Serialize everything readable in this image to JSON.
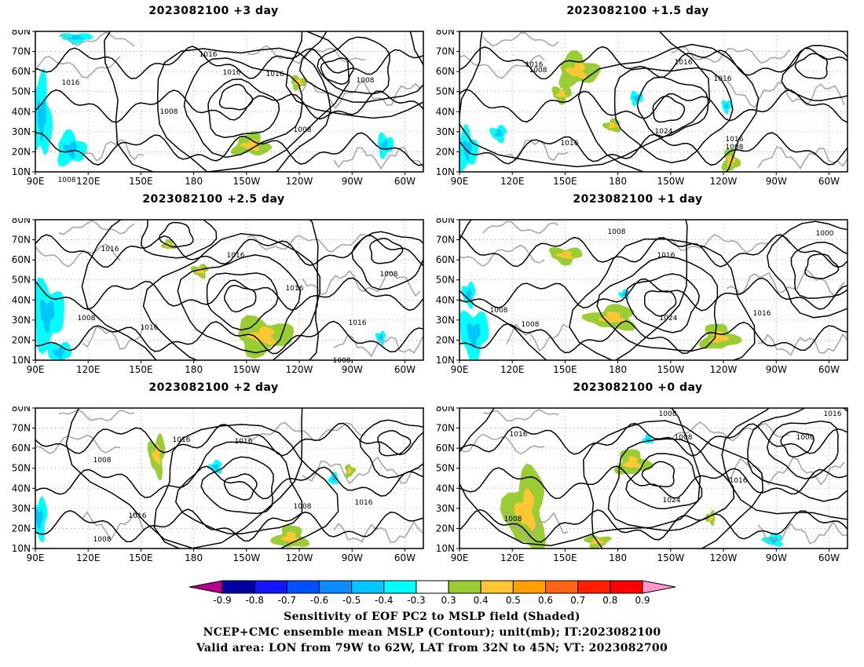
{
  "panels": [
    {
      "title": "2023082100 +3 day",
      "contour_labels": [
        "1016",
        "1016",
        "1016",
        "1016",
        "1008",
        "1008",
        "1008",
        "1008"
      ]
    },
    {
      "title": "2023082100 +1.5 day",
      "contour_labels": [
        "1016",
        "1008",
        "1016",
        "1016",
        "1024",
        "1016",
        "1016",
        "1008"
      ]
    },
    {
      "title": "2023082100 +2.5 day",
      "contour_labels": [
        "1016",
        "1016",
        "1008",
        "1008",
        "1016",
        "1016",
        "1016",
        "1008"
      ]
    },
    {
      "title": "2023082100 +1 day",
      "contour_labels": [
        "1008",
        "1016",
        "1000",
        "1008",
        "1008",
        "1024",
        "1016"
      ]
    },
    {
      "title": "2023082100 +2 day",
      "contour_labels": [
        "1016",
        "1016",
        "1008",
        "1016",
        "1008",
        "1016",
        "1008"
      ]
    },
    {
      "title": "2023082100 +0 day",
      "contour_labels": [
        "1008",
        "1016",
        "1008",
        "1016",
        "1000",
        "1016",
        "1024",
        "1008"
      ]
    }
  ],
  "map_axes": {
    "lat_labels": [
      "80N",
      "70N",
      "60N",
      "50N",
      "40N",
      "30N",
      "20N",
      "10N"
    ],
    "lon_labels": [
      "90E",
      "120E",
      "150E",
      "180",
      "150W",
      "120W",
      "90W",
      "60W"
    ]
  },
  "colorbar": {
    "levels": [
      "-0.9",
      "-0.8",
      "-0.7",
      "-0.6",
      "-0.5",
      "-0.4",
      "-0.3",
      "0.3",
      "0.4",
      "0.5",
      "0.6",
      "0.7",
      "0.8",
      "0.9"
    ],
    "colors": [
      "#b4008c",
      "#0000a0",
      "#1414ff",
      "#0050ff",
      "#0a8cff",
      "#00c8ff",
      "#00ffff",
      "#ffffff",
      "#9acd32",
      "#ffc832",
      "#ffa000",
      "#ff6414",
      "#ff1e00",
      "#ff0000",
      "#ff99cc"
    ]
  },
  "colors": {
    "contour": "#000000",
    "coast": "#a8a8a8",
    "grid": "#999999",
    "pos1": "#9acd32",
    "pos2": "#ffc832",
    "neg1": "#00ffff",
    "neg2": "#00c8ff"
  },
  "footer": {
    "line1": "Sensitivity of EOF PC2 to MSLP field (Shaded)",
    "line2": "NCEP+CMC ensemble mean MSLP (Contour); unit(mb); IT:2023082100",
    "line3": "Valid area: LON from 79W to 62W, LAT from 32N to 45N; VT: 2023082700"
  }
}
